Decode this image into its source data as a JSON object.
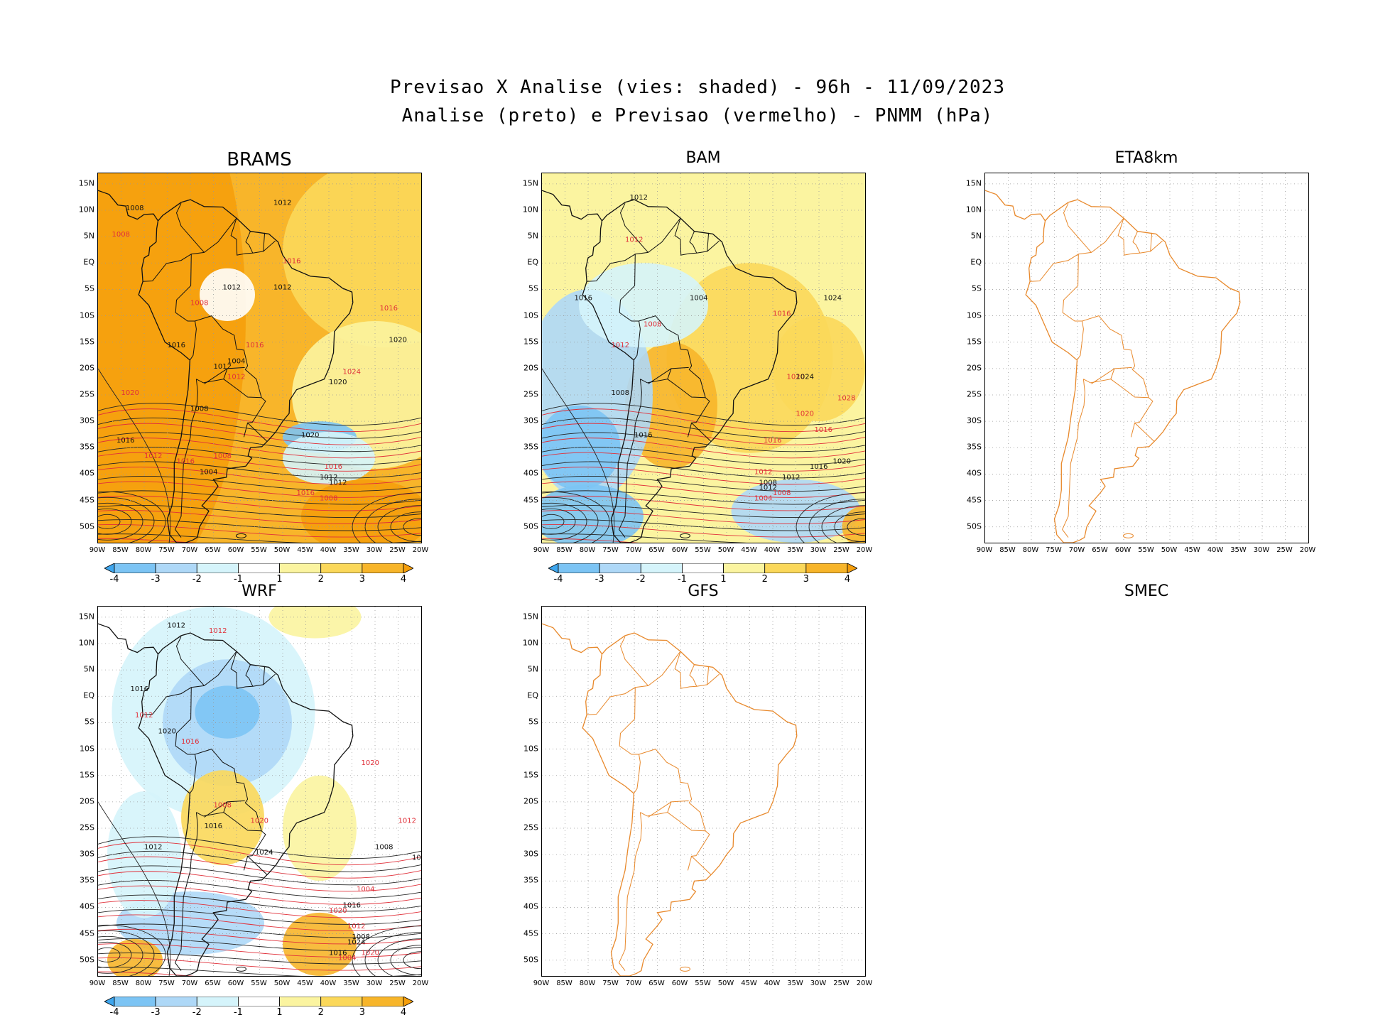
{
  "title": {
    "line1": "Previsao X Analise (vies: shaded) - 96h - 11/09/2023",
    "line2": "Analise (preto) e Previsao (vermelho) - PNMM (hPa)"
  },
  "panels": [
    {
      "id": "brams",
      "name": "BRAMS",
      "bias": "positive",
      "has_colorbar": true
    },
    {
      "id": "bam",
      "name": "BAM",
      "bias": "mixed",
      "has_colorbar": true
    },
    {
      "id": "eta8km",
      "name": "ETA8km",
      "bias": "none",
      "has_colorbar": false
    },
    {
      "id": "wrf",
      "name": "WRF",
      "bias": "negative-north",
      "has_colorbar": true
    },
    {
      "id": "gfs",
      "name": "GFS",
      "bias": "none",
      "has_colorbar": false
    },
    {
      "id": "smec",
      "name": "SMEC",
      "bias": "empty",
      "has_colorbar": false
    }
  ],
  "lat_labels": [
    "15N",
    "10N",
    "5N",
    "EQ",
    "5S",
    "10S",
    "15S",
    "20S",
    "25S",
    "30S",
    "35S",
    "40S",
    "45S",
    "50S"
  ],
  "lon_labels": [
    "90W",
    "85W",
    "80W",
    "75W",
    "70W",
    "65W",
    "60W",
    "55W",
    "50W",
    "45W",
    "40W",
    "35W",
    "30W",
    "25W",
    "20W"
  ],
  "colorbar": {
    "ticks": [
      "-4",
      "-3",
      "-2",
      "-1",
      "1",
      "2",
      "3",
      "4"
    ],
    "colors": [
      "#3ea6ee",
      "#7cc4f4",
      "#aed8f7",
      "#d5f4fb",
      "#ffffff",
      "#fbf4a0",
      "#fbd85a",
      "#f7b52a",
      "#f59e0b"
    ]
  },
  "contour_labels": {
    "brams": [
      "1008",
      "1008",
      "1012",
      "1016",
      "1012",
      "1008",
      "1012",
      "1016",
      "1016",
      "1020",
      "1016",
      "1012",
      "1008",
      "1012",
      "1004",
      "1008",
      "1020",
      "1016",
      "1012",
      "1016",
      "1020",
      "1024",
      "1020",
      "1016",
      "1012",
      "1008",
      "1004",
      "1016",
      "1012"
    ],
    "bam": [
      "1012",
      "1012",
      "1016",
      "1008",
      "1008",
      "1012",
      "1016",
      "1020",
      "1024",
      "1028",
      "1024",
      "1016",
      "1012",
      "1020",
      "1016",
      "1012",
      "1008",
      "1004",
      "1020",
      "1016",
      "1012",
      "1008",
      "1004",
      "1016"
    ],
    "wrf": [
      "1012",
      "1012",
      "1016",
      "1012",
      "1020",
      "1016",
      "1012",
      "1008",
      "1016",
      "1020",
      "1024",
      "1020",
      "1016",
      "1012",
      "1008",
      "1004",
      "1016",
      "1020",
      "1024",
      "1020",
      "1016",
      "1012",
      "1008",
      "1004"
    ]
  }
}
